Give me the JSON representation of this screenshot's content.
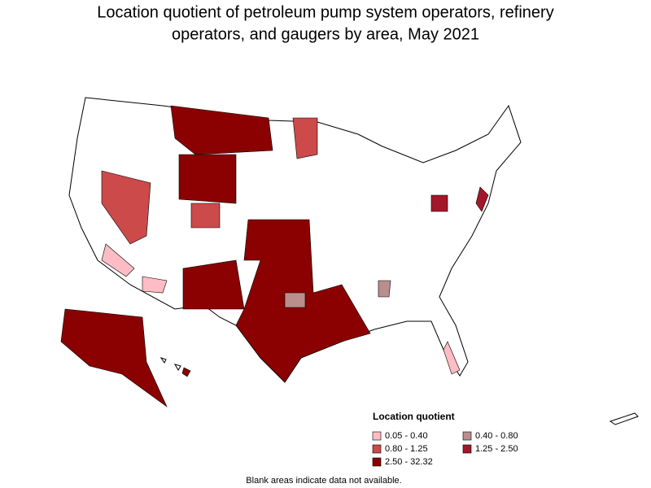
{
  "title": [
    "Location quotient of petroleum pump system operators, refinery",
    "operators, and gaugers by area, May 2021"
  ],
  "legend": {
    "title": "Location quotient",
    "items": [
      {
        "label": "0.05 - 0.40",
        "color": "#ffbcc4"
      },
      {
        "label": "0.40 - 0.80",
        "color": "#bb8e8e"
      },
      {
        "label": "0.80 - 1.25",
        "color": "#cc4a4a"
      },
      {
        "label": "1.25 - 2.50",
        "color": "#a2182a"
      },
      {
        "label": "2.50 - 32.32",
        "color": "#8b0000"
      }
    ]
  },
  "footnote": "Blank areas indicate data not available."
}
